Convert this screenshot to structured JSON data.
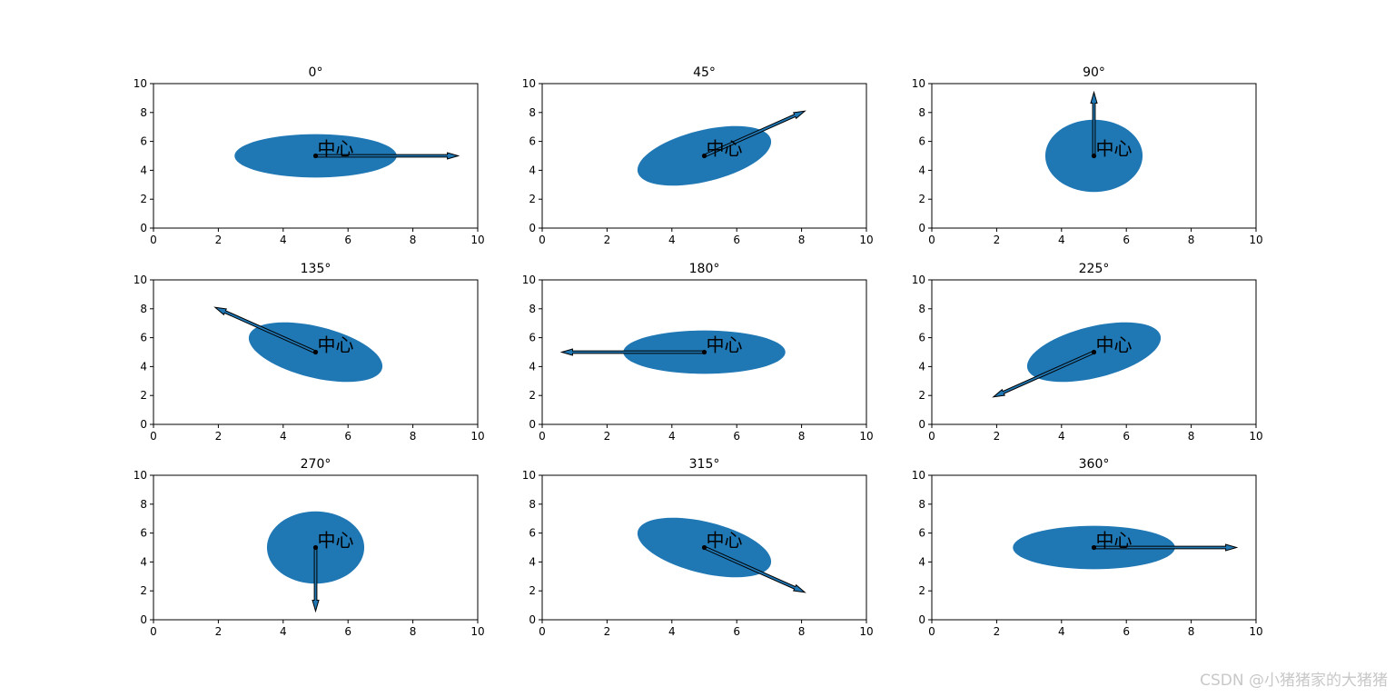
{
  "chart_data": {
    "type": "scatter",
    "panel_layout": "3x3 grid",
    "xlim": [
      0,
      10
    ],
    "ylim": [
      0,
      10
    ],
    "xticks": [
      0,
      2,
      4,
      6,
      8,
      10
    ],
    "yticks": [
      0,
      2,
      4,
      6,
      8,
      10
    ],
    "grid": false,
    "ellipse_color": "#1f77b4",
    "center_point": {
      "x": 5,
      "y": 5
    },
    "center_label": "中心",
    "panels": [
      {
        "title": "0°",
        "angle": 0,
        "ellipse": {
          "width": 5,
          "height": 3
        },
        "arrow_end": [
          9.4,
          5.0
        ]
      },
      {
        "title": "45°",
        "angle": 45,
        "ellipse": {
          "width": 5,
          "height": 3
        },
        "arrow_end": [
          8.1,
          8.1
        ]
      },
      {
        "title": "90°",
        "angle": 90,
        "ellipse": {
          "width": 5,
          "height": 3
        },
        "arrow_end": [
          5.0,
          9.4
        ]
      },
      {
        "title": "135°",
        "angle": 135,
        "ellipse": {
          "width": 5,
          "height": 3
        },
        "arrow_end": [
          1.9,
          8.1
        ]
      },
      {
        "title": "180°",
        "angle": 180,
        "ellipse": {
          "width": 5,
          "height": 3
        },
        "arrow_end": [
          0.6,
          5.0
        ]
      },
      {
        "title": "225°",
        "angle": 225,
        "ellipse": {
          "width": 5,
          "height": 3
        },
        "arrow_end": [
          1.9,
          1.9
        ]
      },
      {
        "title": "270°",
        "angle": 270,
        "ellipse": {
          "width": 5,
          "height": 3
        },
        "arrow_end": [
          5.0,
          0.6
        ]
      },
      {
        "title": "315°",
        "angle": 315,
        "ellipse": {
          "width": 5,
          "height": 3
        },
        "arrow_end": [
          8.1,
          1.9
        ]
      },
      {
        "title": "360°",
        "angle": 360,
        "ellipse": {
          "width": 5,
          "height": 3
        },
        "arrow_end": [
          9.4,
          5.0
        ]
      }
    ]
  },
  "watermark": "CSDN @小猪猪家的大猪猪"
}
